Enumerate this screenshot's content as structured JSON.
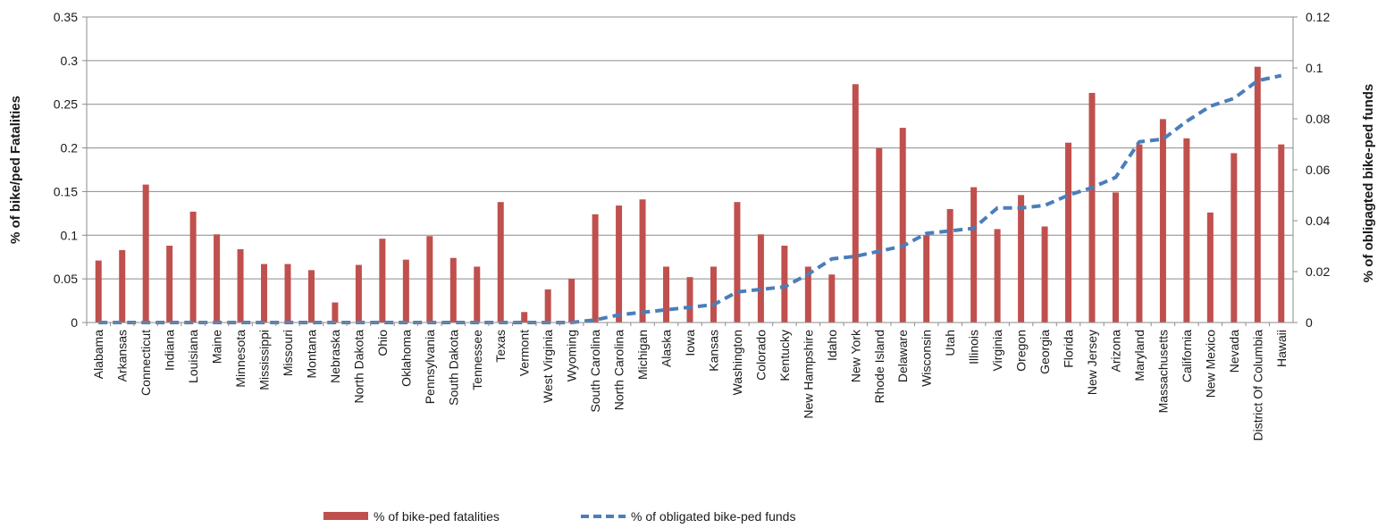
{
  "chart_data": {
    "type": "bar",
    "title": "",
    "categories": [
      "Alabama",
      "Arkansas",
      "Connecticut",
      "Indiana",
      "Louisiana",
      "Maine",
      "Minnesota",
      "Mississippi",
      "Missouri",
      "Montana",
      "Nebraska",
      "North Dakota",
      "Ohio",
      "Oklahoma",
      "Pennsylvania",
      "South Dakota",
      "Tennessee",
      "Texas",
      "Vermont",
      "West Virginia",
      "Wyoming",
      "South Carolina",
      "North Carolina",
      "Michigan",
      "Alaska",
      "Iowa",
      "Kansas",
      "Washington",
      "Colorado",
      "Kentucky",
      "New Hampshire",
      "Idaho",
      "New York",
      "Rhode Island",
      "Delaware",
      "Wisconsin",
      "Utah",
      "Illinois",
      "Virginia",
      "Oregon",
      "Georgia",
      "Florida",
      "New Jersey",
      "Arizona",
      "Maryland",
      "Massachusetts",
      "California",
      "New Mexico",
      "Nevada",
      "District Of Columbia",
      "Hawaii"
    ],
    "series": [
      {
        "name": "% of bike-ped fatalities",
        "type": "bar",
        "axis": "left",
        "color": "#c0504d",
        "values": [
          0.071,
          0.083,
          0.158,
          0.088,
          0.127,
          0.101,
          0.084,
          0.067,
          0.067,
          0.06,
          0.023,
          0.066,
          0.096,
          0.072,
          0.099,
          0.074,
          0.064,
          0.138,
          0.012,
          0.038,
          0.05,
          0.124,
          0.134,
          0.141,
          0.064,
          0.052,
          0.064,
          0.138,
          0.101,
          0.088,
          0.064,
          0.055,
          0.273,
          0.2,
          0.223,
          0.1,
          0.13,
          0.155,
          0.107,
          0.146,
          0.11,
          0.206,
          0.263,
          0.149,
          0.204,
          0.233,
          0.211,
          0.126,
          0.194,
          0.293,
          0.204
        ]
      },
      {
        "name": "% of obligated bike-ped funds",
        "type": "line",
        "axis": "right",
        "color": "#4a7ebb",
        "values": [
          0,
          0,
          0,
          0,
          0,
          0,
          0,
          0,
          0,
          0,
          0,
          0,
          0,
          0,
          0,
          0,
          0,
          0,
          0,
          0,
          0,
          0.001,
          0.003,
          0.004,
          0.005,
          0.006,
          0.007,
          0.012,
          0.013,
          0.014,
          0.019,
          0.025,
          0.026,
          0.028,
          0.03,
          0.035,
          0.036,
          0.037,
          0.045,
          0.045,
          0.046,
          0.05,
          0.053,
          0.057,
          0.071,
          0.072,
          0.079,
          0.085,
          0.088,
          0.095,
          0.097
        ]
      }
    ],
    "left_axis": {
      "label": "% of bike/ped Fatalities",
      "ylim": [
        0,
        0.35
      ],
      "ticks": [
        0,
        0.05,
        0.1,
        0.15,
        0.2,
        0.25,
        0.3,
        0.35
      ],
      "tick_labels": [
        "0",
        "0.05",
        "0.1",
        "0.15",
        "0.2",
        "0.25",
        "0.3",
        "0.35"
      ]
    },
    "right_axis": {
      "label": "% of obligagted bike-ped funds",
      "ylim": [
        0,
        0.12
      ],
      "ticks": [
        0,
        0.02,
        0.04,
        0.06,
        0.08,
        0.1,
        0.12
      ],
      "tick_labels": [
        "0",
        "0.02",
        "0.04",
        "0.06",
        "0.08",
        "0.1",
        "0.12"
      ]
    },
    "grid": true,
    "legend_position": "bottom"
  }
}
